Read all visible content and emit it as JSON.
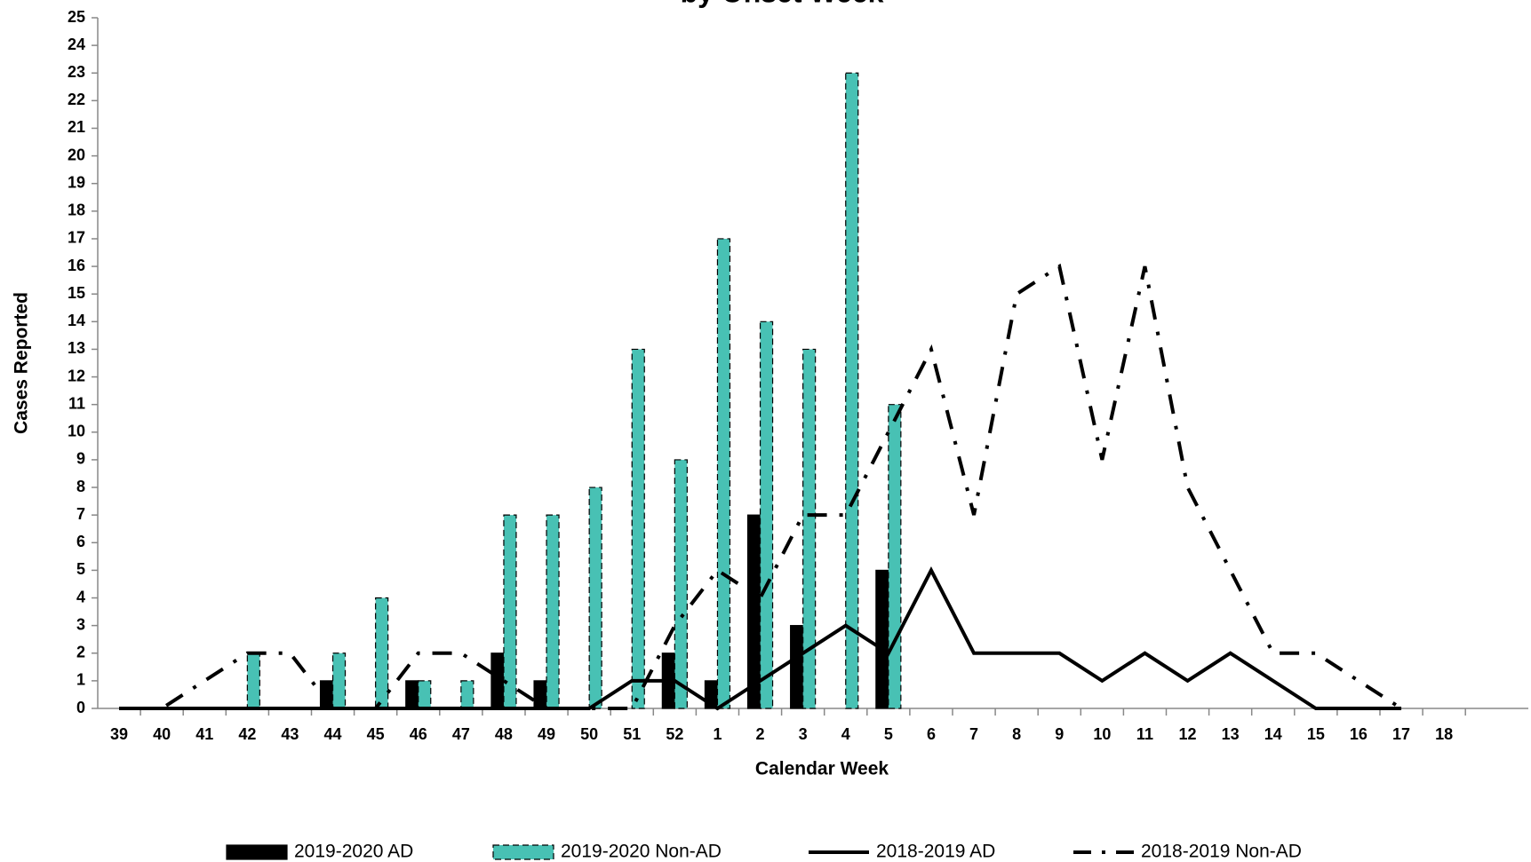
{
  "chart_data": {
    "type": "bar",
    "title": "by Onset Week",
    "x_label": "Calendar Week",
    "y_label": "Cases Reported",
    "categories": [
      "39",
      "40",
      "41",
      "42",
      "43",
      "44",
      "45",
      "46",
      "47",
      "48",
      "49",
      "50",
      "51",
      "52",
      "1",
      "2",
      "3",
      "4",
      "5",
      "6",
      "7",
      "8",
      "9",
      "10",
      "11",
      "12",
      "13",
      "14",
      "15",
      "16",
      "17",
      "18"
    ],
    "ylim": [
      0,
      25
    ],
    "yticks": [
      0,
      1,
      2,
      3,
      4,
      5,
      6,
      7,
      8,
      9,
      10,
      11,
      12,
      13,
      14,
      15,
      16,
      17,
      18,
      19,
      20,
      21,
      22,
      23,
      24,
      25
    ],
    "series": [
      {
        "name": "2019-2020 AD",
        "type": "bar",
        "color": "#000000",
        "line_style": "solid",
        "values": [
          0,
          0,
          0,
          0,
          0,
          1,
          0,
          1,
          0,
          2,
          1,
          0,
          0,
          2,
          1,
          7,
          3,
          0,
          5,
          null,
          null,
          null,
          null,
          null,
          null,
          null,
          null,
          null,
          null,
          null,
          null,
          null
        ]
      },
      {
        "name": "2019-2020 Non-AD",
        "type": "bar",
        "color": "#48c1b4",
        "line_style": "dashed",
        "values": [
          0,
          0,
          0,
          2,
          0,
          2,
          4,
          1,
          1,
          7,
          7,
          8,
          13,
          9,
          17,
          14,
          13,
          23,
          11,
          null,
          null,
          null,
          null,
          null,
          null,
          null,
          null,
          null,
          null,
          null,
          null,
          null
        ]
      },
      {
        "name": "2018-2019 AD",
        "type": "line",
        "color": "#000000",
        "line_style": "solid",
        "values": [
          0,
          0,
          0,
          0,
          0,
          0,
          0,
          0,
          0,
          0,
          0,
          0,
          1,
          1,
          0,
          1,
          2,
          3,
          2,
          5,
          2,
          2,
          2,
          1,
          2,
          1,
          2,
          1,
          0,
          0,
          0,
          null
        ]
      },
      {
        "name": "2018-2019 Non-AD",
        "type": "line",
        "color": "#000000",
        "line_style": "dash-dot",
        "values": [
          0,
          0,
          1,
          2,
          2,
          0,
          0,
          2,
          2,
          1,
          0,
          0,
          0,
          3,
          5,
          4,
          7,
          7,
          10,
          13,
          7,
          15,
          16,
          9,
          16,
          8,
          5,
          2,
          2,
          1,
          0,
          null
        ]
      }
    ]
  }
}
